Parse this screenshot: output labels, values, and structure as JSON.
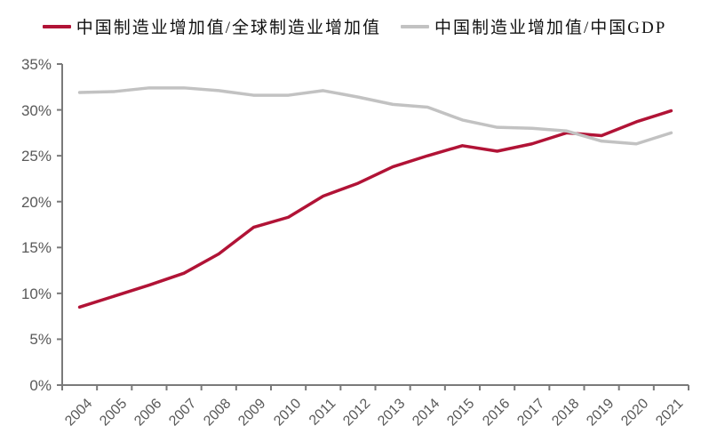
{
  "chart_data": {
    "type": "line",
    "title": "",
    "categories": [
      "2004",
      "2005",
      "2006",
      "2007",
      "2008",
      "2009",
      "2010",
      "2011",
      "2012",
      "2013",
      "2014",
      "2015",
      "2016",
      "2017",
      "2018",
      "2019",
      "2020",
      "2021"
    ],
    "series": [
      {
        "name": "中国制造业增加值/全球制造业增加值",
        "color": "#b11336",
        "values": [
          8.5,
          9.7,
          10.9,
          12.2,
          14.3,
          17.2,
          18.3,
          20.6,
          22.0,
          23.8,
          25.0,
          26.1,
          25.5,
          26.3,
          27.5,
          27.2,
          28.7,
          29.9
        ]
      },
      {
        "name": "中国制造业增加值/中国GDP",
        "color": "#c2c2c2",
        "values": [
          31.9,
          32.0,
          32.4,
          32.4,
          32.1,
          31.6,
          31.6,
          32.1,
          31.4,
          30.6,
          30.3,
          28.9,
          28.1,
          28.0,
          27.7,
          26.6,
          26.3,
          27.5
        ]
      }
    ],
    "xlabel": "",
    "ylabel": "",
    "ylim": [
      0,
      35
    ],
    "y_tick_step": 5,
    "y_ticks": [
      "0%",
      "5%",
      "10%",
      "15%",
      "20%",
      "25%",
      "30%",
      "35%"
    ],
    "grid": false,
    "legend_position": "top"
  },
  "colors": {
    "background": "#ffffff",
    "axis": "#7a7a7a",
    "tick_label": "#595959",
    "series_red": "#b11336",
    "series_gray": "#c2c2c2"
  }
}
